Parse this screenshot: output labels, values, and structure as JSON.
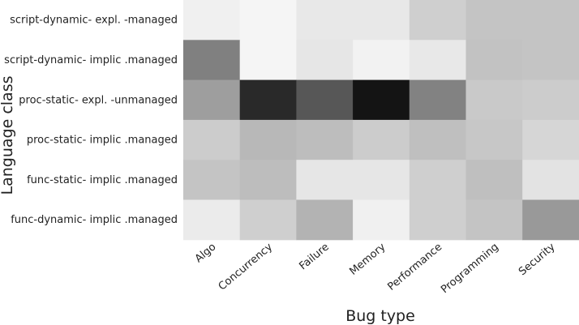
{
  "chart_data": {
    "type": "heatmap",
    "xlabel": "Bug type",
    "ylabel": "Language class",
    "x_categories": [
      "Algo",
      "Concurrency",
      "Failure",
      "Memory",
      "Performance",
      "Programming",
      "Security"
    ],
    "y_categories": [
      "script-dynamic- expl. -managed",
      "script-dynamic- implic .managed",
      "proc-static- expl. -unmanaged",
      "proc-static- implic .managed",
      "func-static- implic .managed",
      "func-dynamic- implic .managed"
    ],
    "values": [
      [
        0.06,
        0.04,
        0.09,
        0.09,
        0.19,
        0.23,
        0.23
      ],
      [
        0.5,
        0.04,
        0.1,
        0.05,
        0.09,
        0.24,
        0.23
      ],
      [
        0.38,
        0.84,
        0.66,
        0.92,
        0.49,
        0.21,
        0.2
      ],
      [
        0.2,
        0.28,
        0.26,
        0.2,
        0.25,
        0.22,
        0.16
      ],
      [
        0.23,
        0.26,
        0.1,
        0.1,
        0.19,
        0.25,
        0.11
      ],
      [
        0.08,
        0.19,
        0.3,
        0.06,
        0.19,
        0.23,
        0.4
      ]
    ],
    "value_range": [
      0,
      1
    ],
    "colormap": "greys",
    "legend": "none",
    "grid": false
  }
}
